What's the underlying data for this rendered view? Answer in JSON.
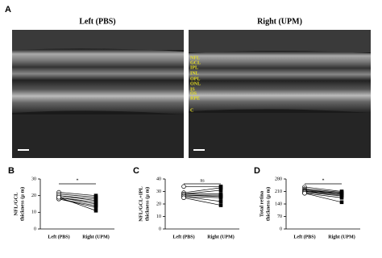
{
  "panel_labels": [
    "A",
    "B",
    "C",
    "D"
  ],
  "image_titles": [
    "Left (PBS)",
    "Right (UPM)"
  ],
  "layer_labels": [
    "NFL",
    "GCL",
    "IPL",
    "INL",
    "OPL",
    "ONL",
    "IS",
    "OS",
    "RPE",
    "C"
  ],
  "chart_data": [
    {
      "type": "line",
      "categories": [
        "Left (PBS)",
        "Right (UPM)"
      ],
      "ylim": [
        0,
        30
      ],
      "yticks": [
        0,
        10,
        20,
        30
      ],
      "ylabel": [
        "NFL/GCL",
        "thickness (μ m)"
      ],
      "significance": "*",
      "color": "#000000",
      "series": [
        {
          "values": [
            22,
            20
          ]
        },
        {
          "values": [
            21,
            19
          ]
        },
        {
          "values": [
            20,
            18
          ]
        },
        {
          "values": [
            20,
            17
          ]
        },
        {
          "values": [
            19,
            16
          ]
        },
        {
          "values": [
            19,
            15
          ]
        },
        {
          "values": [
            18,
            14
          ]
        },
        {
          "values": [
            18,
            13
          ]
        },
        {
          "values": [
            19,
            11
          ]
        }
      ]
    },
    {
      "type": "line",
      "categories": [
        "Left (PBS)",
        "Right (UPM)"
      ],
      "ylim": [
        0,
        40
      ],
      "yticks": [
        0,
        10,
        20,
        30,
        40
      ],
      "ylabel": [
        "NFL/GCL+IPL",
        "thickness (μ m)"
      ],
      "significance": "ns",
      "color": "#000000",
      "series": [
        {
          "values": [
            34,
            34
          ]
        },
        {
          "values": [
            29,
            33
          ]
        },
        {
          "values": [
            28,
            31
          ]
        },
        {
          "values": [
            28,
            28
          ]
        },
        {
          "values": [
            27,
            27
          ]
        },
        {
          "values": [
            27,
            26
          ]
        },
        {
          "values": [
            26,
            25
          ]
        },
        {
          "values": [
            26,
            22
          ]
        },
        {
          "values": [
            25,
            19
          ]
        }
      ]
    },
    {
      "type": "line",
      "categories": [
        "Left (PBS)",
        "Right (UPM)"
      ],
      "ylim": [
        0,
        280
      ],
      "yticks": [
        0,
        70,
        140,
        210,
        280
      ],
      "ylabel": [
        "Total retina",
        "thickness (μ m)"
      ],
      "significance": "*",
      "color": "#000000",
      "series": [
        {
          "values": [
            235,
            210
          ]
        },
        {
          "values": [
            225,
            205
          ]
        },
        {
          "values": [
            220,
            200
          ]
        },
        {
          "values": [
            215,
            200
          ]
        },
        {
          "values": [
            212,
            195
          ]
        },
        {
          "values": [
            210,
            190
          ]
        },
        {
          "values": [
            205,
            185
          ]
        },
        {
          "values": [
            200,
            175
          ]
        },
        {
          "values": [
            200,
            150
          ]
        }
      ]
    }
  ]
}
